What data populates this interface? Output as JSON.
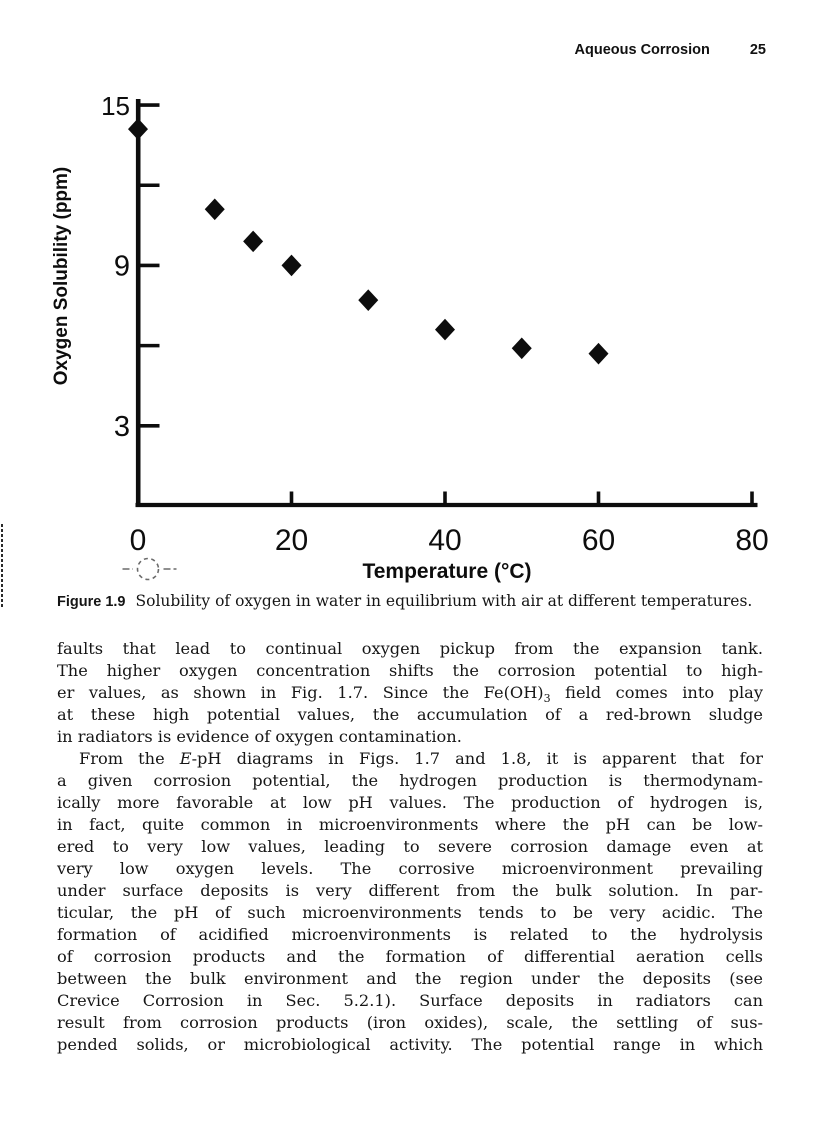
{
  "header": {
    "title": "Aqueous Corrosion",
    "page_number": "25"
  },
  "figure": {
    "caption_label": "Figure 1.9",
    "caption_text": "Solubility of oxygen in water in equilibrium with air at different temperatures."
  },
  "chart_data": {
    "type": "scatter",
    "title": "",
    "xlabel": "Temperature (°C)",
    "ylabel": "Oxygen Solubility (ppm)",
    "x": [
      0,
      10,
      15,
      20,
      30,
      40,
      50,
      60
    ],
    "y": [
      14.1,
      11.1,
      9.9,
      9.0,
      7.7,
      6.6,
      5.9,
      5.7
    ],
    "xlim": [
      0,
      80
    ],
    "ylim": [
      0,
      15.7
    ],
    "xtick_marks": [
      20,
      40,
      60,
      80
    ],
    "xtick_labels": [
      0,
      20,
      40,
      60,
      80
    ],
    "ytick_marks": [
      3,
      6,
      9,
      12,
      15
    ],
    "ytick_labels": [
      15,
      9,
      3
    ],
    "marker": "diamond",
    "marker_color": "#0d0d0d",
    "grid": false,
    "legend": false
  },
  "icons": {
    "registration_mark": "dashed-circle-crosshair",
    "crop_mark": "dashed-vertical-line"
  },
  "body": {
    "paragraphs": [
      {
        "indent": false,
        "last_line_justified": false,
        "lines": [
          "faults that lead to continual oxygen pickup from the expansion tank.",
          "The higher oxygen concentration shifts the corrosion potential to high-",
          "er values, as shown in Fig. 1.7. Since the Fe(OH)<sub>3</sub> field comes into play",
          "at these high potential values, the accumulation of a red-brown sludge",
          "in radiators is evidence of oxygen contamination."
        ]
      },
      {
        "indent": true,
        "last_line_justified": true,
        "lines": [
          "From the <i>E</i>-pH diagrams in Figs. 1.7 and 1.8, it is apparent that for",
          "a given corrosion potential, the hydrogen production is thermodynam-",
          "ically more favorable at low pH values. The production of hydrogen is,",
          "in fact, quite common in microenvironments where the pH can be low-",
          "ered to very low values, leading to severe corrosion damage even at",
          "very low oxygen levels. The corrosive microenvironment prevailing",
          "under surface deposits is very different from the bulk solution. In par-",
          "ticular, the pH of such microenvironments tends to be very acidic. The",
          "formation of acidified microenvironments is related to the hydrolysis",
          "of corrosion products and the formation of differential aeration cells",
          "between the bulk environment and the region under the deposits (see",
          "Crevice Corrosion in Sec. 5.2.1). Surface deposits in radiators can",
          "result from corrosion products (iron oxides), scale, the settling of sus-",
          "pended solids, or microbiological activity. The potential range in which"
        ]
      }
    ]
  }
}
